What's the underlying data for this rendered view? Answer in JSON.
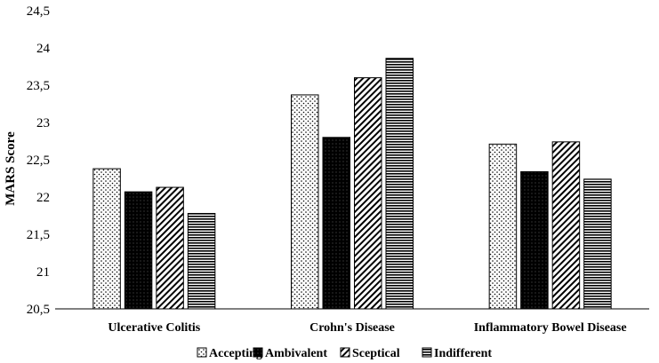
{
  "chart_data": {
    "type": "bar",
    "title": "",
    "xlabel": "",
    "ylabel": "MARS Score",
    "ylim": [
      20.5,
      24.5
    ],
    "yticks": [
      "20,5",
      "21",
      "21,5",
      "22",
      "22,5",
      "23",
      "23,5",
      "24",
      "24,5"
    ],
    "categories": [
      "Ulcerative Colitis",
      "Crohn's Disease",
      "Inflammatory Bowel Disease"
    ],
    "series": [
      {
        "name": "Accepting",
        "values": [
          22.38,
          23.37,
          22.71
        ]
      },
      {
        "name": "Ambivalent",
        "values": [
          22.07,
          22.8,
          22.34
        ]
      },
      {
        "name": "Sceptical",
        "values": [
          22.13,
          23.6,
          22.74
        ]
      },
      {
        "name": "Indifferent",
        "values": [
          21.78,
          23.86,
          22.24
        ]
      }
    ],
    "legend_position": "bottom",
    "grid": false,
    "patterns": [
      "dots",
      "solid-black",
      "diagonal",
      "horizontal"
    ]
  }
}
